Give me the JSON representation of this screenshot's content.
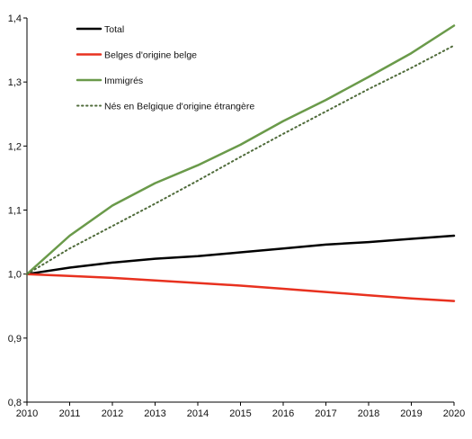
{
  "chart_data": {
    "type": "line",
    "title": "",
    "xlabel": "",
    "ylabel": "",
    "x": [
      2010,
      2011,
      2012,
      2013,
      2014,
      2015,
      2016,
      2017,
      2018,
      2019,
      2020
    ],
    "x_tick_labels": [
      "2010",
      "2011",
      "2012",
      "2013",
      "2014",
      "2015",
      "2016",
      "2017",
      "2018",
      "2019",
      "2020"
    ],
    "ylim": [
      0.8,
      1.4
    ],
    "y_ticks": [
      0.8,
      0.9,
      1.0,
      1.1,
      1.2,
      1.3,
      1.4
    ],
    "y_tick_labels": [
      "0,8",
      "0,9",
      "1,0",
      "1,1",
      "1,2",
      "1,3",
      "1,4"
    ],
    "grid": false,
    "legend_position": "top-left",
    "series": [
      {
        "name": "Total",
        "color": "#000000",
        "dash": "solid",
        "values": [
          1.0,
          1.01,
          1.018,
          1.024,
          1.028,
          1.034,
          1.04,
          1.046,
          1.05,
          1.055,
          1.06
        ]
      },
      {
        "name": "Belges d'origine belge",
        "color": "#e8311f",
        "dash": "solid",
        "values": [
          1.0,
          0.997,
          0.994,
          0.99,
          0.986,
          0.982,
          0.977,
          0.972,
          0.967,
          0.962,
          0.958
        ]
      },
      {
        "name": "Immigrés",
        "color": "#6a9a4a",
        "dash": "solid",
        "values": [
          1.0,
          1.06,
          1.107,
          1.142,
          1.17,
          1.202,
          1.239,
          1.272,
          1.308,
          1.345,
          1.388
        ]
      },
      {
        "name": "Nés en Belgique d'origine étrangère",
        "color": "#4f6b3a",
        "dash": "dotted",
        "values": [
          1.0,
          1.04,
          1.075,
          1.11,
          1.146,
          1.183,
          1.219,
          1.254,
          1.289,
          1.322,
          1.357
        ]
      }
    ]
  }
}
